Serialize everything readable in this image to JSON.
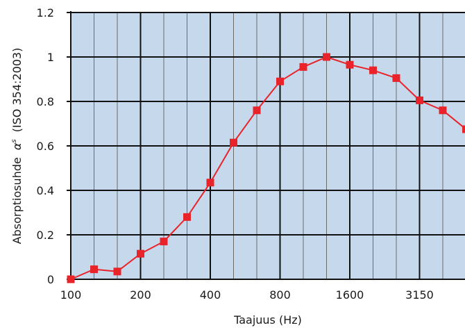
{
  "chart_data": {
    "type": "line",
    "title": "",
    "xlabel": "Taajuus (Hz)",
    "ylabel_prefix": "Absorptiosuhde",
    "ylabel_symbol": "α",
    "ylabel_superscript": "s",
    "ylabel_suffix": "(ISO 354:2003)",
    "x": [
      100,
      125,
      160,
      200,
      250,
      315,
      400,
      500,
      630,
      800,
      1000,
      1250,
      1600,
      2000,
      2500,
      3150,
      4000,
      5000
    ],
    "x_tick_labels": [
      "100",
      "200",
      "400",
      "800",
      "1600",
      "3150"
    ],
    "y_tick_labels": [
      "0",
      "0.2",
      "0.4",
      "0.6",
      "0.8",
      "1",
      "1.2"
    ],
    "ylim": [
      0,
      1.2
    ],
    "grid": true,
    "x_scale": "third-octave (log)",
    "series": [
      {
        "values": [
          0.0,
          0.045,
          0.035,
          0.115,
          0.17,
          0.28,
          0.435,
          0.615,
          0.76,
          0.89,
          0.955,
          1.0,
          0.965,
          0.94,
          0.905,
          0.805,
          0.76,
          0.675
        ],
        "color": "#e8232a",
        "marker": "square"
      }
    ],
    "colors": {
      "plot_background": "#c6d9ec",
      "grid_major": "#111111",
      "grid_minor": "#6b6b6b"
    }
  }
}
